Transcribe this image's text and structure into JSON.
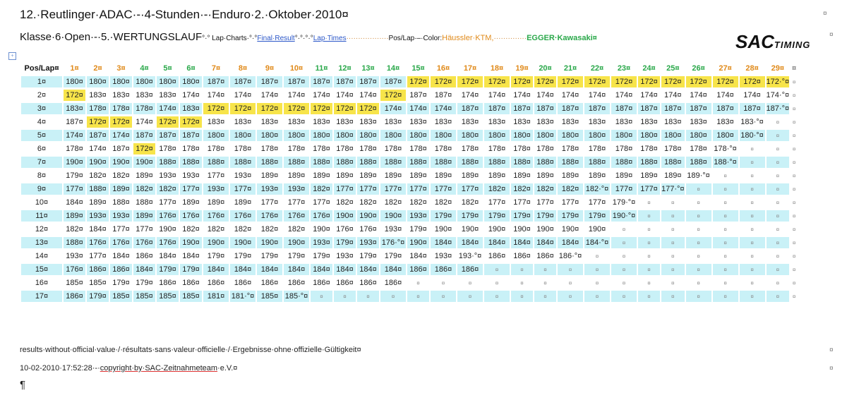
{
  "title": "12.·Reutlinger·ADAC·-·4-Stunden·-·Enduro·2.·Oktober·2010¤",
  "subtitle": {
    "klasse": "Klasse·6·Open·-·5.·WERTUNGSLAUF",
    "lap_charts": "°·° Lap·Charts·°·°",
    "final_result": "Final·Result",
    "sep2": "°·°·°·°",
    "lap_times": "Lap·Times",
    "dots1": "··················",
    "pos_lap": "Pos/Lap·–·Color:",
    "team1": "Häussler·KTM,",
    "dots2": "··············",
    "team2": "EGGER·Kawasaki¤"
  },
  "logo": {
    "main": "SAC",
    "sub": "TIMING"
  },
  "table": {
    "header_pos": "Pos/Lap¤",
    "laps": [
      "1¤",
      "2¤",
      "3¤",
      "4¤",
      "5¤",
      "6¤",
      "7¤",
      "8¤",
      "9¤",
      "10¤",
      "11¤",
      "12¤",
      "13¤",
      "14¤",
      "15¤",
      "16¤",
      "17¤",
      "18¤",
      "19¤",
      "20¤",
      "21¤",
      "22¤",
      "23¤",
      "24¤",
      "25¤",
      "26¤",
      "27¤",
      "28¤",
      "29¤"
    ],
    "lap_colors": [
      "orange",
      "orange",
      "orange",
      "green",
      "green",
      "green",
      "orange",
      "orange",
      "orange",
      "orange",
      "green",
      "green",
      "green",
      "green",
      "green",
      "orange",
      "orange",
      "orange",
      "orange",
      "green",
      "green",
      "green",
      "green",
      "green",
      "green",
      "green",
      "orange",
      "orange",
      "orange"
    ],
    "rows": [
      {
        "pos": "1¤",
        "cells": [
          "180¤",
          "180¤",
          "180¤",
          "180¤",
          "180¤",
          "180¤",
          "187¤",
          "187¤",
          "187¤",
          "187¤",
          "187¤",
          "187¤",
          "187¤",
          "187¤",
          "172¤",
          "172¤",
          "172¤",
          "172¤",
          "172¤",
          "172¤",
          "172¤",
          "172¤",
          "172¤",
          "172¤",
          "172¤",
          "172¤",
          "172¤",
          "172¤",
          "172·°¤"
        ],
        "hi": [
          14,
          15,
          16,
          17,
          18,
          19,
          20,
          21,
          22,
          23,
          24,
          25,
          26,
          27,
          28
        ]
      },
      {
        "pos": "2¤",
        "cells": [
          "172¤",
          "183¤",
          "183¤",
          "183¤",
          "183¤",
          "174¤",
          "174¤",
          "174¤",
          "174¤",
          "174¤",
          "174¤",
          "174¤",
          "174¤",
          "172¤",
          "187¤",
          "187¤",
          "174¤",
          "174¤",
          "174¤",
          "174¤",
          "174¤",
          "174¤",
          "174¤",
          "174¤",
          "174¤",
          "174¤",
          "174¤",
          "174¤",
          "174·°¤"
        ],
        "hi": [
          0,
          13
        ]
      },
      {
        "pos": "3¤",
        "cells": [
          "183¤",
          "178¤",
          "178¤",
          "178¤",
          "174¤",
          "183¤",
          "172¤",
          "172¤",
          "172¤",
          "172¤",
          "172¤",
          "172¤",
          "172¤",
          "174¤",
          "174¤",
          "174¤",
          "187¤",
          "187¤",
          "187¤",
          "187¤",
          "187¤",
          "187¤",
          "187¤",
          "187¤",
          "187¤",
          "187¤",
          "187¤",
          "187¤",
          "187·°¤"
        ],
        "hi": [
          6,
          7,
          8,
          9,
          10,
          11,
          12
        ]
      },
      {
        "pos": "4¤",
        "cells": [
          "187¤",
          "172¤",
          "172¤",
          "174¤",
          "172¤",
          "172¤",
          "183¤",
          "183¤",
          "183¤",
          "183¤",
          "183¤",
          "183¤",
          "183¤",
          "183¤",
          "183¤",
          "183¤",
          "183¤",
          "183¤",
          "183¤",
          "183¤",
          "183¤",
          "183¤",
          "183¤",
          "183¤",
          "183¤",
          "183¤",
          "183¤",
          "183·°¤",
          "¤"
        ],
        "hi": [
          1,
          2,
          4,
          5
        ]
      },
      {
        "pos": "5¤",
        "cells": [
          "174¤",
          "187¤",
          "174¤",
          "187¤",
          "187¤",
          "187¤",
          "180¤",
          "180¤",
          "180¤",
          "180¤",
          "180¤",
          "180¤",
          "180¤",
          "180¤",
          "180¤",
          "180¤",
          "180¤",
          "180¤",
          "180¤",
          "180¤",
          "180¤",
          "180¤",
          "180¤",
          "180¤",
          "180¤",
          "180¤",
          "180¤",
          "180·°¤",
          "¤"
        ],
        "hi": []
      },
      {
        "pos": "6¤",
        "cells": [
          "178¤",
          "174¤",
          "187¤",
          "172¤",
          "178¤",
          "178¤",
          "178¤",
          "178¤",
          "178¤",
          "178¤",
          "178¤",
          "178¤",
          "178¤",
          "178¤",
          "178¤",
          "178¤",
          "178¤",
          "178¤",
          "178¤",
          "178¤",
          "178¤",
          "178¤",
          "178¤",
          "178¤",
          "178¤",
          "178¤",
          "178·°¤",
          "¤",
          "¤"
        ],
        "hi": [
          3
        ]
      },
      {
        "pos": "7¤",
        "cells": [
          "190¤",
          "190¤",
          "190¤",
          "190¤",
          "188¤",
          "188¤",
          "188¤",
          "188¤",
          "188¤",
          "188¤",
          "188¤",
          "188¤",
          "188¤",
          "188¤",
          "188¤",
          "188¤",
          "188¤",
          "188¤",
          "188¤",
          "188¤",
          "188¤",
          "188¤",
          "188¤",
          "188¤",
          "188¤",
          "188¤",
          "188·°¤",
          "¤",
          "¤"
        ],
        "hi": []
      },
      {
        "pos": "8¤",
        "cells": [
          "179¤",
          "182¤",
          "182¤",
          "189¤",
          "193¤",
          "193¤",
          "177¤",
          "193¤",
          "189¤",
          "189¤",
          "189¤",
          "189¤",
          "189¤",
          "189¤",
          "189¤",
          "189¤",
          "189¤",
          "189¤",
          "189¤",
          "189¤",
          "189¤",
          "189¤",
          "189¤",
          "189¤",
          "189¤",
          "189·°¤",
          "¤",
          "¤",
          "¤"
        ],
        "hi": []
      },
      {
        "pos": "9¤",
        "cells": [
          "177¤",
          "188¤",
          "189¤",
          "182¤",
          "182¤",
          "177¤",
          "193¤",
          "177¤",
          "193¤",
          "193¤",
          "182¤",
          "177¤",
          "177¤",
          "177¤",
          "177¤",
          "177¤",
          "177¤",
          "182¤",
          "182¤",
          "182¤",
          "182¤",
          "182·°¤",
          "177¤",
          "177¤",
          "177·°¤",
          "¤",
          "¤",
          "¤",
          "¤"
        ],
        "hi": []
      },
      {
        "pos": "10¤",
        "cells": [
          "184¤",
          "189¤",
          "188¤",
          "188¤",
          "177¤",
          "189¤",
          "189¤",
          "189¤",
          "177¤",
          "177¤",
          "177¤",
          "182¤",
          "182¤",
          "182¤",
          "182¤",
          "182¤",
          "182¤",
          "177¤",
          "177¤",
          "177¤",
          "177¤",
          "177¤",
          "179·°¤",
          "¤",
          "¤",
          "¤",
          "¤",
          "¤",
          "¤"
        ],
        "hi": []
      },
      {
        "pos": "11¤",
        "cells": [
          "189¤",
          "193¤",
          "193¤",
          "189¤",
          "176¤",
          "176¤",
          "176¤",
          "176¤",
          "176¤",
          "176¤",
          "176¤",
          "190¤",
          "190¤",
          "190¤",
          "193¤",
          "179¤",
          "179¤",
          "179¤",
          "179¤",
          "179¤",
          "179¤",
          "179¤",
          "190·°¤",
          "¤",
          "¤",
          "¤",
          "¤",
          "¤",
          "¤"
        ],
        "hi": []
      },
      {
        "pos": "12¤",
        "cells": [
          "182¤",
          "184¤",
          "177¤",
          "177¤",
          "190¤",
          "182¤",
          "182¤",
          "182¤",
          "182¤",
          "182¤",
          "190¤",
          "176¤",
          "176¤",
          "193¤",
          "179¤",
          "190¤",
          "190¤",
          "190¤",
          "190¤",
          "190¤",
          "190¤",
          "190¤",
          "¤",
          "¤",
          "¤",
          "¤",
          "¤",
          "¤",
          "¤"
        ],
        "hi": []
      },
      {
        "pos": "13¤",
        "cells": [
          "188¤",
          "176¤",
          "176¤",
          "176¤",
          "176¤",
          "190¤",
          "190¤",
          "190¤",
          "190¤",
          "190¤",
          "193¤",
          "179¤",
          "193¤",
          "176·°¤",
          "190¤",
          "184¤",
          "184¤",
          "184¤",
          "184¤",
          "184¤",
          "184¤",
          "184·°¤",
          "¤",
          "¤",
          "¤",
          "¤",
          "¤",
          "¤",
          "¤"
        ],
        "hi": []
      },
      {
        "pos": "14¤",
        "cells": [
          "193¤",
          "177¤",
          "184¤",
          "186¤",
          "184¤",
          "184¤",
          "179¤",
          "179¤",
          "179¤",
          "179¤",
          "179¤",
          "193¤",
          "179¤",
          "179¤",
          "184¤",
          "193¤",
          "193·°¤",
          "186¤",
          "186¤",
          "186¤",
          "186·°¤",
          "¤",
          "¤",
          "¤",
          "¤",
          "¤",
          "¤",
          "¤",
          "¤"
        ],
        "hi": []
      },
      {
        "pos": "15¤",
        "cells": [
          "176¤",
          "186¤",
          "186¤",
          "184¤",
          "179¤",
          "179¤",
          "184¤",
          "184¤",
          "184¤",
          "184¤",
          "184¤",
          "184¤",
          "184¤",
          "184¤",
          "186¤",
          "186¤",
          "186¤",
          "¤",
          "¤",
          "¤",
          "¤",
          "¤",
          "¤",
          "¤",
          "¤",
          "¤",
          "¤",
          "¤",
          "¤"
        ],
        "hi": []
      },
      {
        "pos": "16¤",
        "cells": [
          "185¤",
          "185¤",
          "179¤",
          "179¤",
          "186¤",
          "186¤",
          "186¤",
          "186¤",
          "186¤",
          "186¤",
          "186¤",
          "186¤",
          "186¤",
          "186¤",
          "¤",
          "¤",
          "¤",
          "¤",
          "¤",
          "¤",
          "¤",
          "¤",
          "¤",
          "¤",
          "¤",
          "¤",
          "¤",
          "¤",
          "¤"
        ],
        "hi": []
      },
      {
        "pos": "17¤",
        "cells": [
          "186¤",
          "179¤",
          "185¤",
          "185¤",
          "185¤",
          "185¤",
          "181¤",
          "181·°¤",
          "185¤",
          "185·°¤",
          "¤",
          "¤",
          "¤",
          "¤",
          "¤",
          "¤",
          "¤",
          "¤",
          "¤",
          "¤",
          "¤",
          "¤",
          "¤",
          "¤",
          "¤",
          "¤",
          "¤",
          "¤",
          "¤"
        ],
        "hi": []
      }
    ]
  },
  "footer": {
    "note": "results·without·official·value·/·résultats·sans·valeur·officielle·/·Ergebnisse·ohne·offizielle·Gültigkeit¤",
    "timestamp": "10-02-2010·17:52:28·-·",
    "copyright_lead": "copyright·by",
    "copyright_org": "·SAC-Zeitnahmeteam",
    "copyright_tail": "·e.V.¤",
    "pilcrow": "¶"
  },
  "marks": {
    "cell_end": "¤",
    "anchor": "+"
  }
}
